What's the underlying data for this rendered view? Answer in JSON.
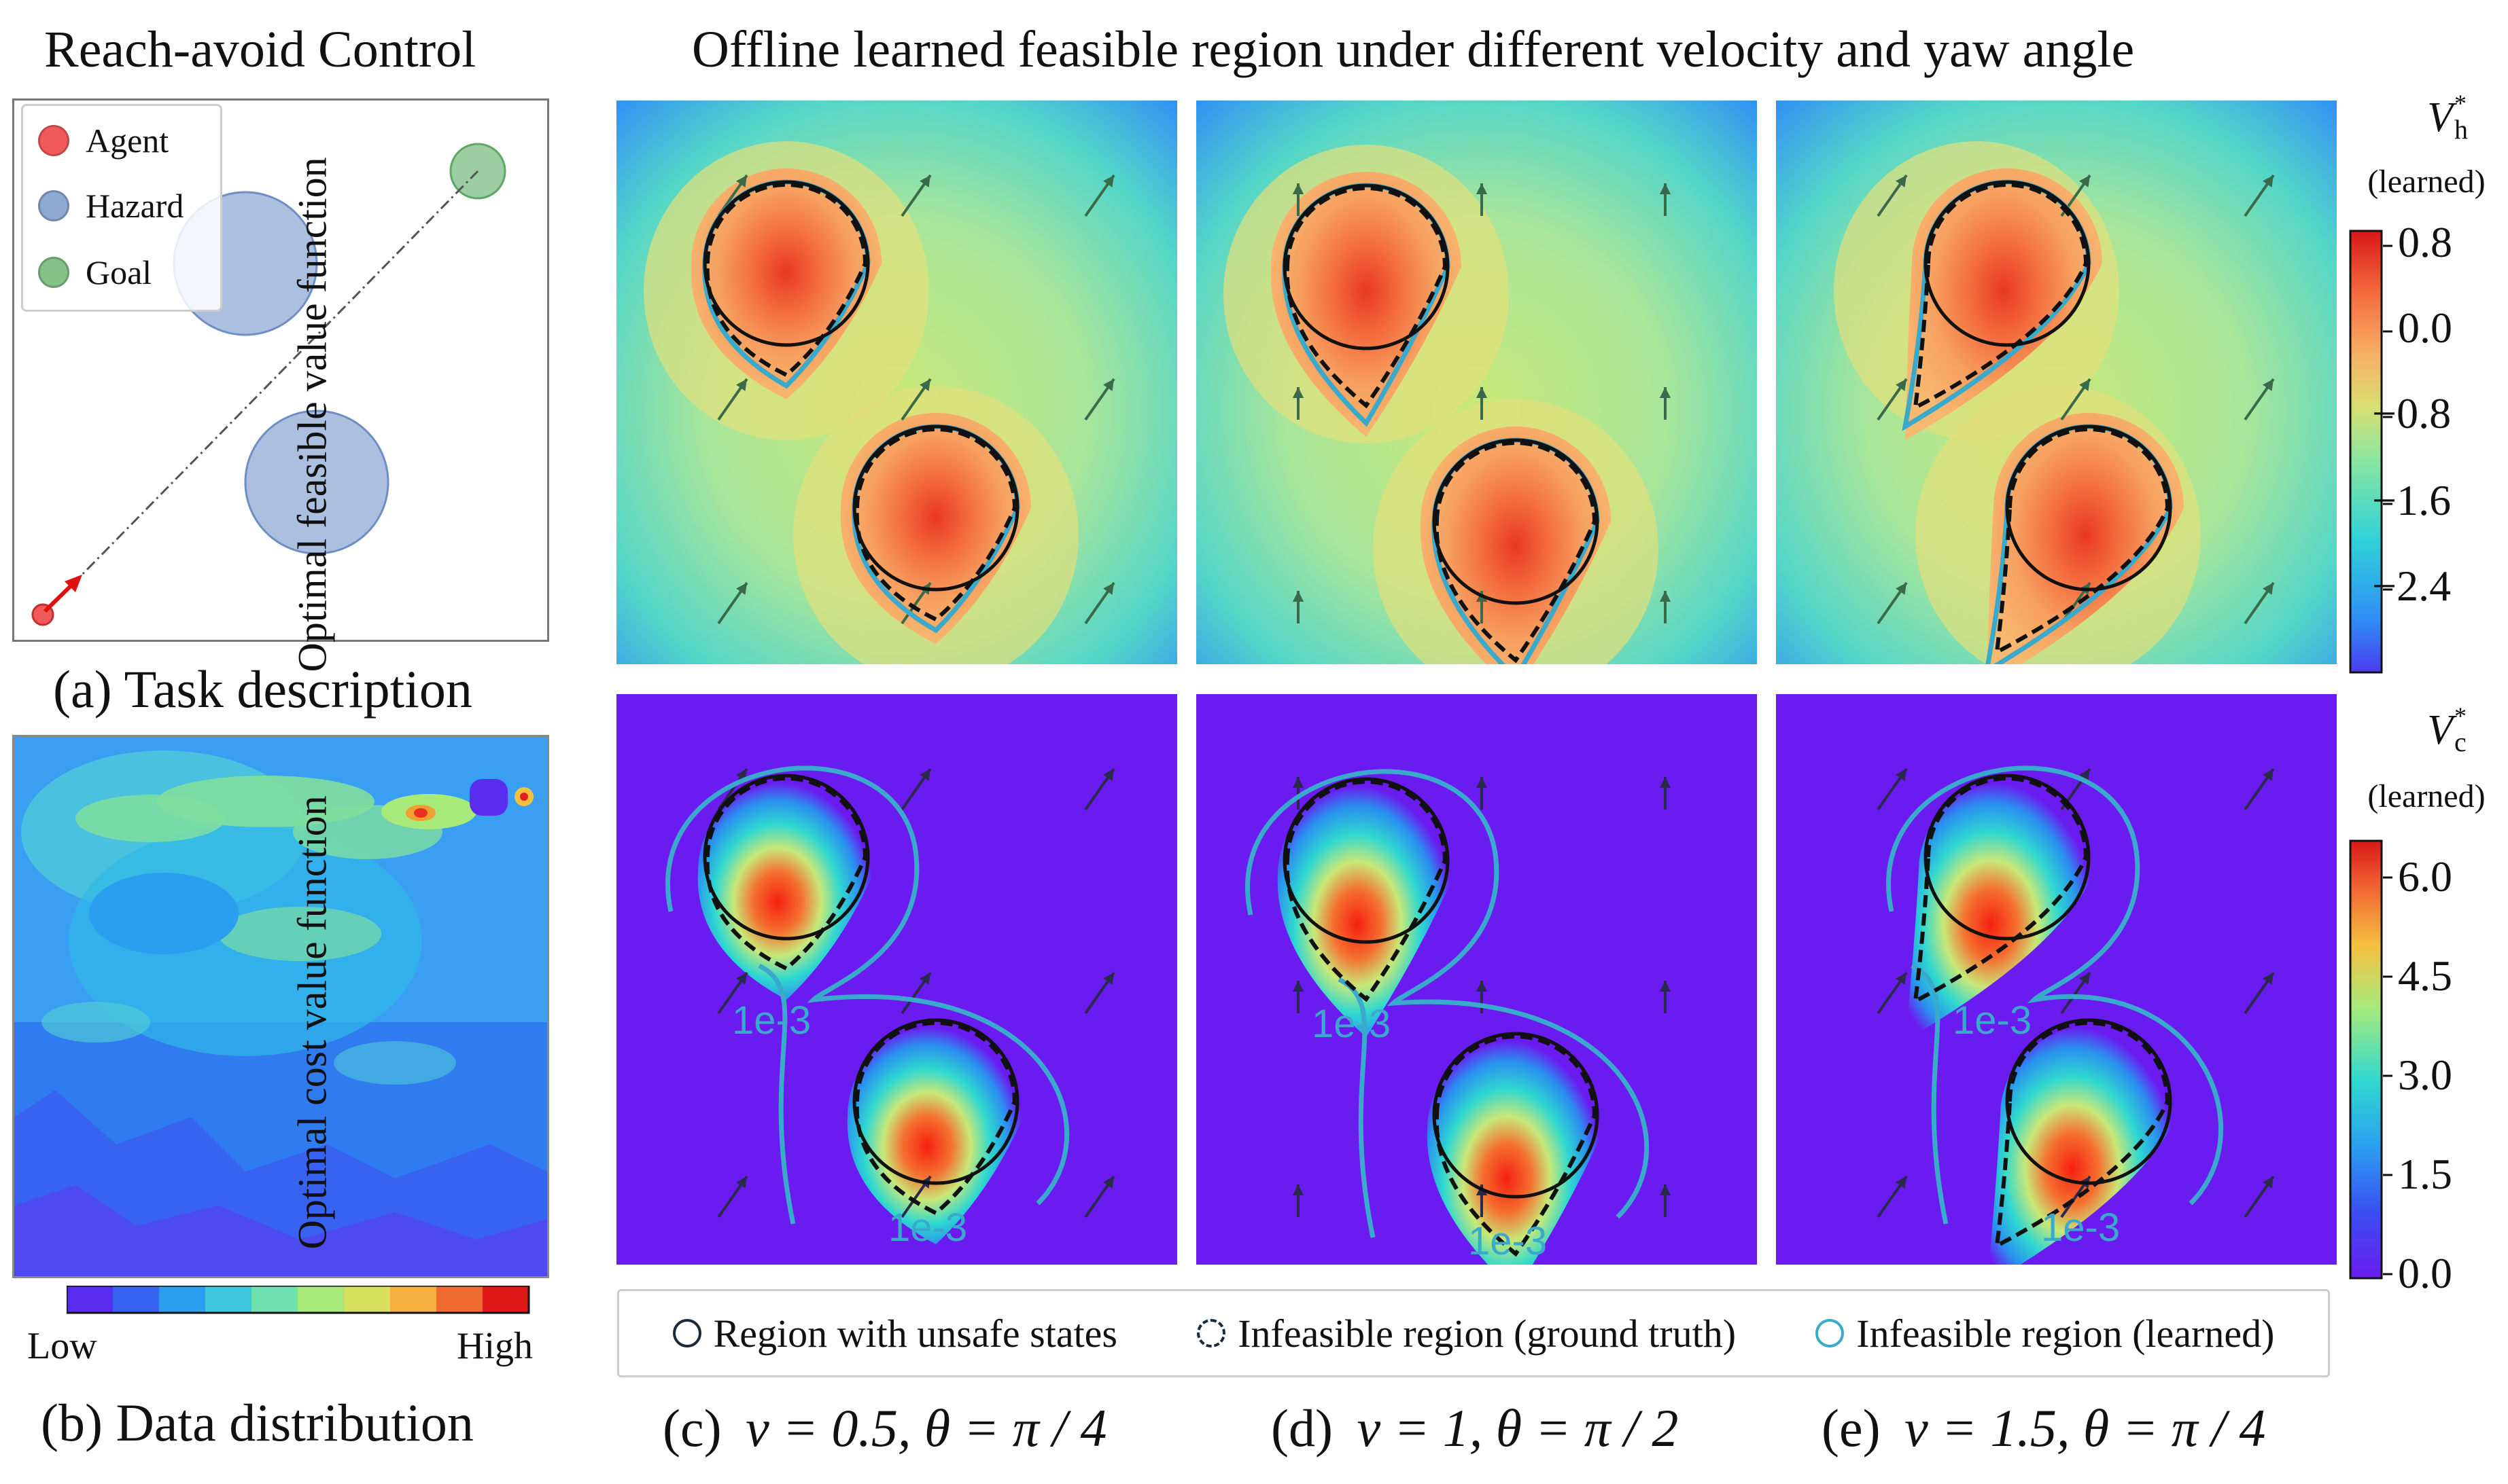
{
  "left_title": "Reach-avoid Control",
  "main_title": "Offline learned feasible region under different velocity and yaw angle",
  "task_legend": [
    {
      "label": "Agent",
      "color": "#f25a5a"
    },
    {
      "label": "Hazard",
      "color": "#8fa9d4"
    },
    {
      "label": "Goal",
      "color": "#84c28a"
    }
  ],
  "caption_a": "(a) Task description",
  "caption_b": "(b) Data distribution",
  "data_colorbar": {
    "low": "Low",
    "high": "High"
  },
  "row_labels": {
    "top": "Optimal feasible value function",
    "bottom": "Optimal cost value function"
  },
  "colorbar_top": {
    "symbol": "V",
    "superscript": "*",
    "subscript": "h",
    "note": "(learned)",
    "ticks": [
      "0.8",
      "0.0",
      "−0.8",
      "−1.6",
      "−2.4"
    ]
  },
  "colorbar_bottom": {
    "symbol": "V",
    "superscript": "*",
    "subscript": "c",
    "note": "(learned)",
    "ticks": [
      "6.0",
      "4.5",
      "3.0",
      "1.5",
      "0.0"
    ]
  },
  "contour_label": "1e-3",
  "bottom_legend": [
    {
      "label": "Region with unsafe states",
      "style": "solid",
      "color": "#1a2a3a"
    },
    {
      "label": "Infeasible region (ground truth)",
      "style": "dashed",
      "color": "#1a2a3a"
    },
    {
      "label": "Infeasible region (learned)",
      "style": "solid",
      "color": "#3aaacc"
    }
  ],
  "panel_captions": [
    {
      "prefix": "(c)",
      "formula": "v = 0.5, θ = π / 4"
    },
    {
      "prefix": "(d)",
      "formula": "v = 1, θ = π / 2"
    },
    {
      "prefix": "(e)",
      "formula": "v = 1.5, θ = π / 4"
    }
  ],
  "colors": {
    "unsafe_region": "#111111",
    "learned_region": "#3aaacc",
    "background_low": "#6a1cf0"
  }
}
